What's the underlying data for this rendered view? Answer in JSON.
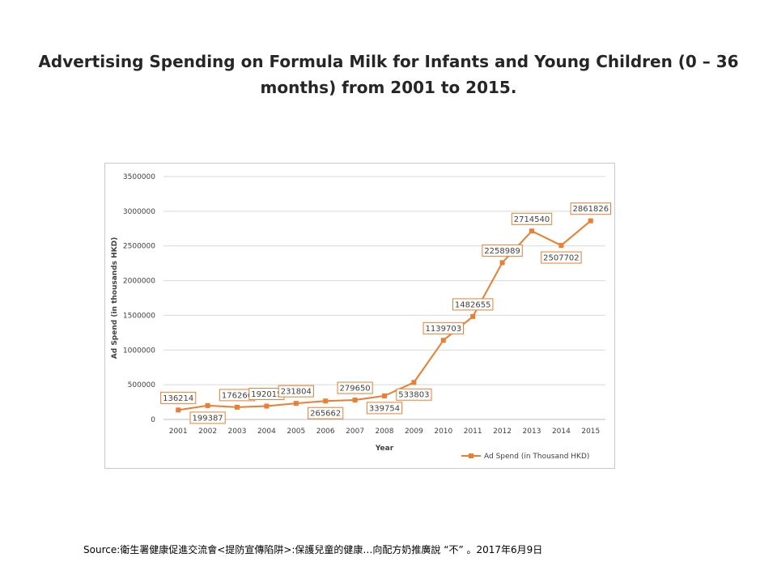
{
  "slide": {
    "title": "Advertising Spending on Formula Milk for Infants and Young Children (0 – 36 months) from 2001 to 2015.",
    "source": "Source:衛生署健康促進交流會<提防宣傳陷阱>:保護兒童的健康…向配方奶推廣說 “不” 。2017年6月9日"
  },
  "chart_data": {
    "type": "line",
    "title": "",
    "xlabel": "Year",
    "ylabel": "Ad Spend (in thousands HKD)",
    "x": [
      "2001",
      "2002",
      "2003",
      "2004",
      "2005",
      "2006",
      "2007",
      "2008",
      "2009",
      "2010",
      "2011",
      "2012",
      "2013",
      "2014",
      "2015"
    ],
    "series": [
      {
        "name": "Ad Spend (in Thousand HKD)",
        "values": [
          136214,
          199387,
          176266,
          192015,
          231804,
          265662,
          279650,
          339754,
          533803,
          1139703,
          1482655,
          2258989,
          2714540,
          2507702,
          2861826
        ],
        "color": "#ed7d31"
      }
    ],
    "ylim": [
      0,
      3500000
    ],
    "yticks": [
      "0",
      "500000",
      "1000000",
      "1500000",
      "2000000",
      "2500000",
      "3000000",
      "3500000"
    ],
    "grid": true,
    "legend": "bottom-right",
    "data_label_placement": [
      "above",
      "below",
      "above",
      "above",
      "above",
      "below",
      "above",
      "below",
      "below",
      "above",
      "above",
      "above",
      "above",
      "below",
      "above"
    ]
  }
}
